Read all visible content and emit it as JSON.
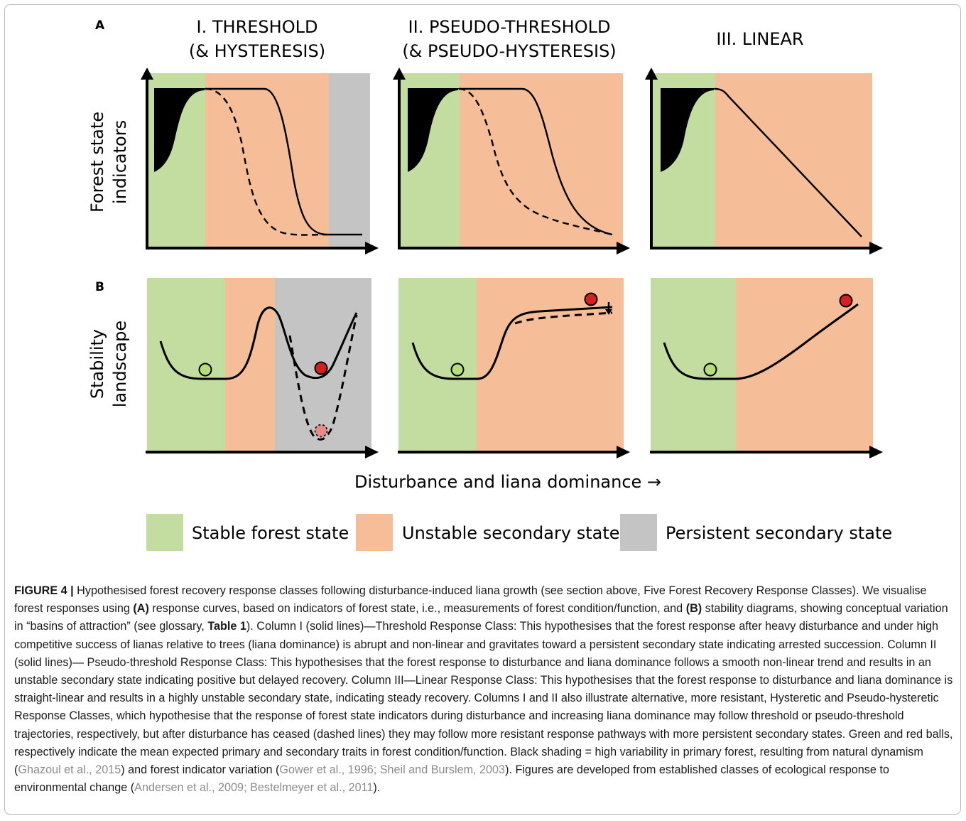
{
  "figure": {
    "panel_a_label": "A",
    "panel_b_label": "B",
    "columns": [
      {
        "title_line1": "I. THRESHOLD",
        "title_line2": "(& HYSTERESIS)"
      },
      {
        "title_line1": "II. PSEUDO-THRESHOLD",
        "title_line2": "(& PSEUDO-HYSTERESIS)"
      },
      {
        "title_line1": "",
        "title_line2": "III. LINEAR"
      }
    ],
    "row_a_ylabel_line1": "Forest state",
    "row_a_ylabel_line2": "indicators",
    "row_b_ylabel_line1": "Stability",
    "row_b_ylabel_line2": "landscape",
    "xlabel": "Disturbance and liana dominance →",
    "legend": [
      {
        "label": "Stable forest state",
        "color": "#c3dca0"
      },
      {
        "label": "Unstable secondary state",
        "color": "#f6be98"
      },
      {
        "label": "Persistent secondary state",
        "color": "#c4c4c4"
      }
    ]
  },
  "colors": {
    "green_ball": "#b6df7c",
    "red_ball": "#d81f1f",
    "pink_ball": "#e88a8a",
    "curve": "#000000"
  },
  "caption": {
    "figure_label": "FIGURE 4 |",
    "part1": " Hypothesised forest recovery response classes following disturbance-induced liana growth (see section above, Five Forest Recovery Response Classes). We visualise forest responses using ",
    "bold_a": "(A)",
    "part2": " response curves, based on indicators of forest state, i.e., measurements of forest condition/function, and ",
    "bold_b": "(B)",
    "part3": " stability diagrams, showing conceptual variation in “basins of attraction” (see glossary, ",
    "bold_table": "Table 1",
    "part4": "). Column I (solid lines)—Threshold Response Class: This hypothesises that the forest response after heavy disturbance and under high competitive success of lianas relative to trees (liana dominance) is abrupt and non-linear and gravitates toward a persistent secondary state indicating arrested succession. Column II (solid lines)— Pseudo-threshold Response Class: This hypothesises that the forest response to disturbance and liana dominance follows a smooth non-linear trend and results in an unstable secondary state indicating positive but delayed recovery. Column III—Linear Response Class: This hypothesises that the forest response to disturbance and liana dominance is straight-linear and results in a highly unstable secondary state, indicating steady recovery. Columns I and II also illustrate alternative, more resistant, Hysteretic and Pseudo-hysteretic Response Classes, which hypothesise that the response of forest state indicators during disturbance and increasing liana dominance may follow threshold or pseudo-threshold trajectories, respectively, but after disturbance has ceased (dashed lines) they may follow more resistant response pathways with more persistent secondary states. Green and red balls, respectively indicate the mean expected primary and secondary traits in forest condition/function. Black shading = high variability in primary forest, resulting from natural dynamism (",
    "ref1": "Ghazoul et al., 2015",
    "part5": ") and forest indicator variation (",
    "ref2": "Gower et al., 1996; Sheil and Burslem, 2003",
    "part6": "). Figures are developed from established classes of ecological response to environmental change (",
    "ref3": "Andersen et al., 2009; Bestelmeyer et al., 2011",
    "part7": ")."
  }
}
